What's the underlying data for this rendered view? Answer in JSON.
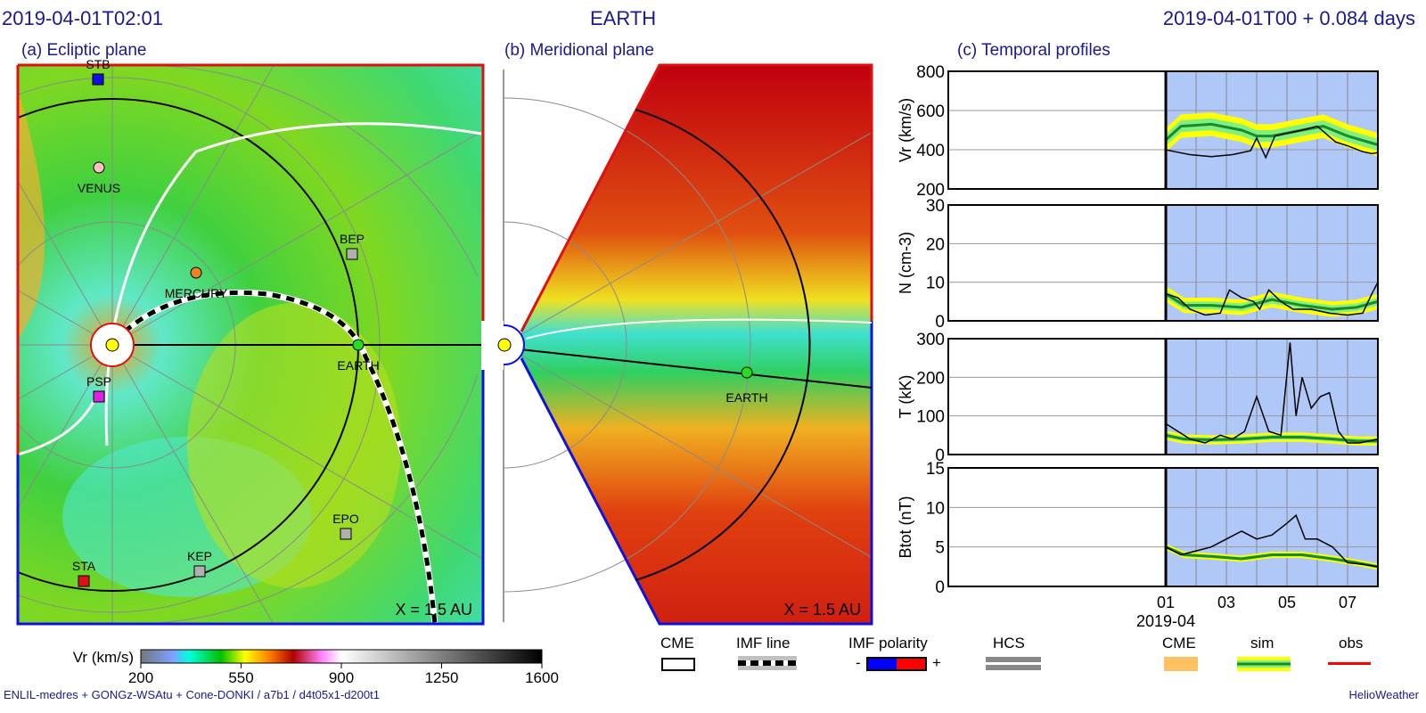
{
  "header": {
    "left": "2019-04-01T02:01",
    "center": "EARTH",
    "right": "2019-04-01T00 +  0.084 days"
  },
  "panels": {
    "a": "(a) Ecliptic plane",
    "b": "(b) Meridional plane",
    "c": "(c) Temporal profiles"
  },
  "scale_label": "X = 1.5 AU",
  "bodies_a": [
    {
      "name": "STB",
      "color": "#1010e0",
      "shape": "square"
    },
    {
      "name": "VENUS",
      "color": "#ffc0c0",
      "shape": "circle"
    },
    {
      "name": "MERCURY",
      "color": "#f08020",
      "shape": "circle"
    },
    {
      "name": "BEP",
      "color": "#b0b0b0",
      "shape": "square"
    },
    {
      "name": "EARTH",
      "color": "#20e020",
      "shape": "circle"
    },
    {
      "name": "PSP",
      "color": "#e020e0",
      "shape": "square"
    },
    {
      "name": "EPO",
      "color": "#b0b0b0",
      "shape": "square"
    },
    {
      "name": "KEP",
      "color": "#b0b0b0",
      "shape": "square"
    },
    {
      "name": "STA",
      "color": "#e01010",
      "shape": "square"
    }
  ],
  "earth_b": "EARTH",
  "colorbar": {
    "label": "Vr (km/s)",
    "ticks": [
      "200",
      "550",
      "900",
      "1250",
      "1600"
    ]
  },
  "legend": {
    "cme": "CME",
    "imf_line": "IMF line",
    "imf_polarity": "IMF polarity",
    "minus": "-",
    "plus": "+",
    "hcs": "HCS",
    "cme2": "CME",
    "sim": "sim",
    "obs": "obs"
  },
  "footer": {
    "left": "ENLIL-medres + GONGz-WSAtu + Cone-DONKI / a7b1 / d4t05x1-d200t1",
    "right": "HelioWeather"
  },
  "chart_data": [
    {
      "type": "line",
      "ylabel": "Vr (km/s)",
      "ylim": [
        200,
        800
      ],
      "yticks": [
        "200",
        "400",
        "600",
        "800"
      ],
      "xlim_days": [
        -7.18,
        7.0
      ],
      "sim_x": [
        0,
        0.5,
        1.5,
        2.5,
        3.0,
        3.5,
        4.5,
        5.2,
        6.0,
        7.0
      ],
      "sim": [
        450,
        520,
        530,
        500,
        470,
        470,
        500,
        520,
        470,
        425
      ],
      "sim_band": [
        30,
        60
      ],
      "obs_x": [
        0,
        0.3,
        0.8,
        1.5,
        2.2,
        2.8,
        3.0,
        3.3,
        3.6,
        3.9,
        4.5,
        5.0,
        5.3,
        5.6,
        6.0,
        6.5,
        6.8,
        7.0
      ],
      "obs": [
        400,
        390,
        375,
        365,
        375,
        395,
        460,
        360,
        470,
        480,
        500,
        520,
        480,
        440,
        420,
        390,
        380,
        385
      ]
    },
    {
      "type": "line",
      "ylabel": "N (cm-3)",
      "ylim": [
        0,
        30
      ],
      "yticks": [
        "0",
        "10",
        "20",
        "30"
      ],
      "sim_x": [
        0,
        0.6,
        1.5,
        2.5,
        3.5,
        4.5,
        5.5,
        6.3,
        7.0
      ],
      "sim": [
        7,
        4,
        4,
        3.5,
        5.5,
        4,
        3,
        3.5,
        5
      ],
      "sim_band": [
        1,
        2
      ],
      "obs_x": [
        0,
        0.4,
        0.8,
        1.3,
        1.8,
        2.1,
        2.5,
        2.9,
        3.1,
        3.4,
        3.8,
        4.2,
        4.8,
        5.4,
        6.0,
        6.5,
        6.8,
        7.0
      ],
      "obs": [
        7,
        6,
        3,
        1.5,
        2,
        8,
        6,
        5,
        3,
        8,
        5,
        3,
        3,
        2,
        1.5,
        2,
        7,
        10
      ]
    },
    {
      "type": "line",
      "ylabel": "T (kK)",
      "ylim": [
        0,
        300
      ],
      "yticks": [
        "0",
        "100",
        "200",
        "300"
      ],
      "sim_x": [
        0,
        0.6,
        1.5,
        2.5,
        3.5,
        4.5,
        5.5,
        6.3,
        7.0
      ],
      "sim": [
        50,
        40,
        38,
        40,
        45,
        45,
        40,
        35,
        35
      ],
      "sim_band": [
        6,
        12
      ],
      "obs_x": [
        0,
        0.4,
        0.8,
        1.3,
        1.8,
        2.2,
        2.6,
        3.0,
        3.4,
        3.8,
        4.1,
        4.3,
        4.5,
        4.8,
        5.1,
        5.4,
        5.7,
        6.0,
        6.4,
        7.0
      ],
      "obs": [
        80,
        60,
        40,
        30,
        50,
        40,
        60,
        150,
        60,
        50,
        290,
        100,
        200,
        120,
        150,
        160,
        60,
        30,
        30,
        40
      ]
    },
    {
      "type": "line",
      "ylabel": "Btot (nT)",
      "ylim": [
        0,
        15
      ],
      "yticks": [
        "0",
        "5",
        "10",
        "15"
      ],
      "sim_x": [
        0,
        0.6,
        1.5,
        2.5,
        3.5,
        4.5,
        5.5,
        6.3,
        7.0
      ],
      "sim": [
        5,
        4,
        3.8,
        3.5,
        4,
        4,
        3.5,
        3,
        2.5
      ],
      "sim_band": [
        0.2,
        0.4
      ],
      "obs_x": [
        0,
        0.5,
        1.0,
        1.5,
        2.0,
        2.5,
        3.0,
        3.5,
        4.0,
        4.3,
        4.6,
        5.0,
        5.5,
        6.0,
        6.5,
        7.0
      ],
      "obs": [
        5,
        4,
        4.5,
        5,
        6,
        7,
        6,
        6.5,
        8,
        9,
        6,
        6,
        5,
        3,
        2.8,
        2.5
      ]
    }
  ],
  "xaxis": {
    "ticks": [
      "01",
      "03",
      "05",
      "07"
    ],
    "tick_days": [
      0,
      2,
      4,
      6
    ],
    "sub": "2019-04"
  },
  "colors": {
    "shade": "#b0c8f8",
    "sim_line": "#1a8a2a",
    "band_outer": "#ffff00",
    "band_inner": "#80f080",
    "obs": "#000000"
  }
}
